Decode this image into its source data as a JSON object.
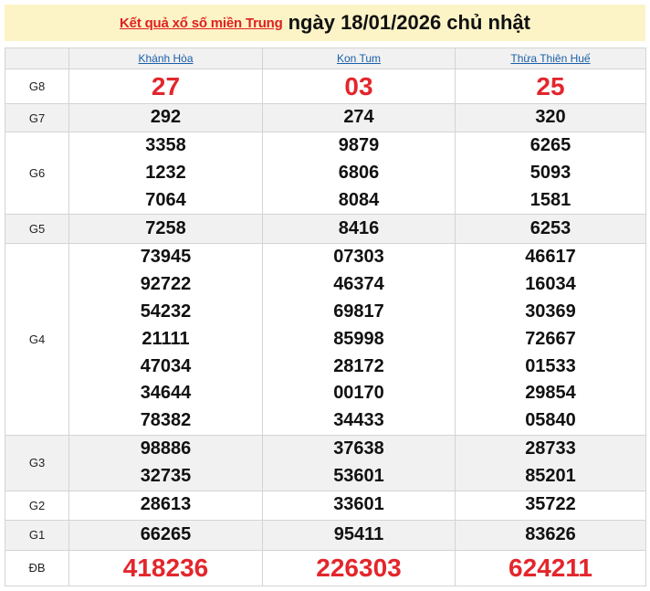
{
  "header": {
    "link_text": "Kết quả xổ số miền Trung",
    "date_text": "ngày 18/01/2026 chủ nhật"
  },
  "colors": {
    "accent_red": "#e3262c",
    "link_blue": "#1a5fa8",
    "title_bg": "#fcf4c6"
  },
  "table": {
    "provinces": [
      "Khánh Hòa",
      "Kon Tum",
      "Thừa Thiên Huế"
    ],
    "rows": [
      {
        "label": "G8",
        "highlight": true,
        "values": [
          [
            "27"
          ],
          [
            "03"
          ],
          [
            "25"
          ]
        ]
      },
      {
        "label": "G7",
        "values": [
          [
            "292"
          ],
          [
            "274"
          ],
          [
            "320"
          ]
        ]
      },
      {
        "label": "G6",
        "values": [
          [
            "3358",
            "1232",
            "7064"
          ],
          [
            "9879",
            "6806",
            "8084"
          ],
          [
            "6265",
            "5093",
            "1581"
          ]
        ]
      },
      {
        "label": "G5",
        "values": [
          [
            "7258"
          ],
          [
            "8416"
          ],
          [
            "6253"
          ]
        ]
      },
      {
        "label": "G4",
        "values": [
          [
            "73945",
            "92722",
            "54232",
            "21111",
            "47034",
            "34644",
            "78382"
          ],
          [
            "07303",
            "46374",
            "69817",
            "85998",
            "28172",
            "00170",
            "34433"
          ],
          [
            "46617",
            "16034",
            "30369",
            "72667",
            "01533",
            "29854",
            "05840"
          ]
        ]
      },
      {
        "label": "G3",
        "values": [
          [
            "98886",
            "32735"
          ],
          [
            "37638",
            "53601"
          ],
          [
            "28733",
            "85201"
          ]
        ]
      },
      {
        "label": "G2",
        "values": [
          [
            "28613"
          ],
          [
            "33601"
          ],
          [
            "35722"
          ]
        ]
      },
      {
        "label": "G1",
        "values": [
          [
            "66265"
          ],
          [
            "95411"
          ],
          [
            "83626"
          ]
        ]
      },
      {
        "label": "ĐB",
        "highlight": true,
        "values": [
          [
            "418236"
          ],
          [
            "226303"
          ],
          [
            "624211"
          ]
        ]
      }
    ]
  }
}
